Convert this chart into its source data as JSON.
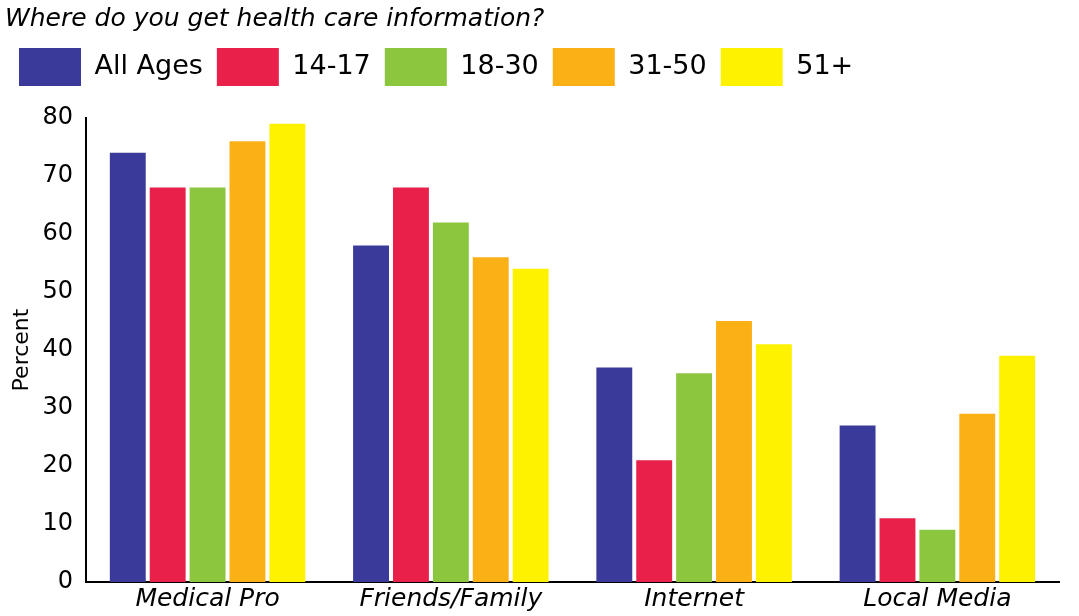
{
  "chart_data": {
    "type": "bar",
    "title": "Where do you get health care information?",
    "ylabel": "Percent",
    "categories": [
      "Medical Pro",
      "Friends/Family",
      "Internet",
      "Local Media"
    ],
    "series": [
      {
        "name": "All Ages",
        "color": "#3a3a9a",
        "values": [
          74,
          58,
          37,
          27
        ]
      },
      {
        "name": "14-17",
        "color": "#e8204a",
        "values": [
          68,
          68,
          21,
          11
        ]
      },
      {
        "name": "18-30",
        "color": "#8cc63f",
        "values": [
          68,
          62,
          36,
          9
        ]
      },
      {
        "name": "31-50",
        "color": "#fbb016",
        "values": [
          76,
          56,
          45,
          29
        ]
      },
      {
        "name": "51+",
        "color": "#fff200",
        "values": [
          79,
          54,
          41,
          39
        ]
      }
    ],
    "ylim": [
      0,
      80
    ],
    "yticks": [
      0,
      10,
      20,
      30,
      40,
      50,
      60,
      70,
      80
    ],
    "grid": false,
    "legend": "top"
  }
}
